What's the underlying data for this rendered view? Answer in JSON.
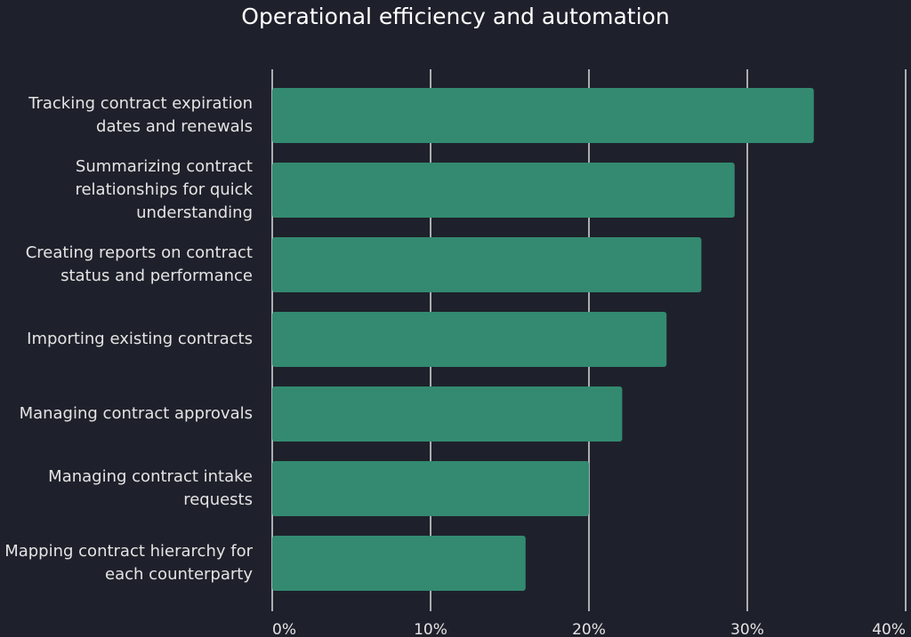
{
  "chart_data": {
    "type": "barh",
    "title": "Operational efficiency and automation",
    "categories": [
      "Tracking contract expiration dates and renewals",
      "Summarizing contract relationships for quick understanding",
      "Creating reports on contract status and performance",
      "Importing existing contracts",
      "Managing contract approvals",
      "Managing contract intake requests",
      "Mapping contract hierarchy for each counterparty"
    ],
    "values": [
      34.2,
      29.2,
      27.1,
      24.9,
      22.1,
      20,
      16
    ],
    "color": "#338a70",
    "xlim": [
      0,
      40
    ],
    "xticks": [
      {
        "value": 0,
        "label": "0%"
      },
      {
        "value": 10,
        "label": "10%"
      },
      {
        "value": 20,
        "label": "20%"
      },
      {
        "value": 30,
        "label": "30%"
      },
      {
        "value": 40,
        "label": "40%"
      }
    ],
    "grid": true
  }
}
